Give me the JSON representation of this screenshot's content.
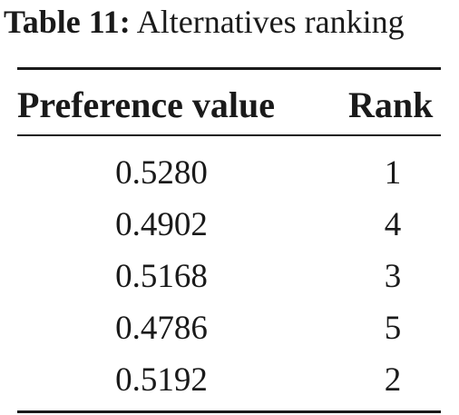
{
  "caption": {
    "label": "Table 11:",
    "title": "Alternatives ranking"
  },
  "table": {
    "columns": [
      "Preference value",
      "Rank"
    ],
    "rows": [
      {
        "preference": "0.5280",
        "rank": "1"
      },
      {
        "preference": "0.4902",
        "rank": "4"
      },
      {
        "preference": "0.5168",
        "rank": "3"
      },
      {
        "preference": "0.4786",
        "rank": "5"
      },
      {
        "preference": "0.5192",
        "rank": "2"
      }
    ]
  }
}
